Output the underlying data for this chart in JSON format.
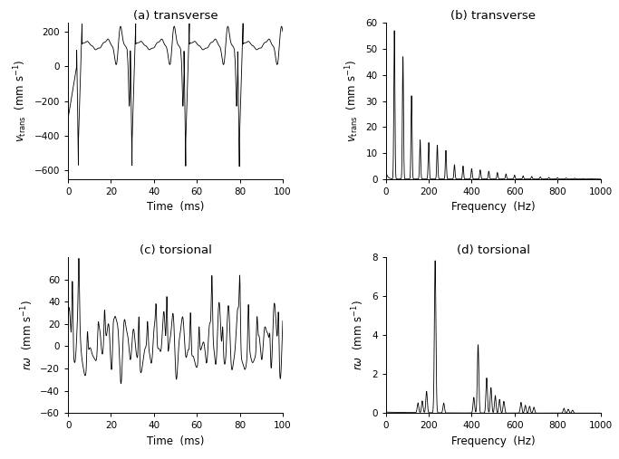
{
  "fig_width": 6.83,
  "fig_height": 5.07,
  "dpi": 100,
  "background_color": "#ffffff",
  "panels": {
    "a": {
      "title": "(a) transverse",
      "xlabel": "Time  (ms)",
      "ylabel_latex": "$v_\\mathrm{trans}$  (mm s$^{-1}$)",
      "xlim": [
        0,
        100
      ],
      "ylim": [
        -650,
        250
      ],
      "yticks": [
        -600,
        -400,
        -200,
        0,
        200
      ],
      "xticks": [
        0,
        20,
        40,
        60,
        80,
        100
      ]
    },
    "b": {
      "title": "(b) transverse",
      "xlabel": "Frequency  (Hz)",
      "ylabel_latex": "$v_\\mathrm{trans}$  (mm s$^{-1}$)",
      "xlim": [
        0,
        1000
      ],
      "ylim": [
        0,
        60
      ],
      "yticks": [
        0,
        10,
        20,
        30,
        40,
        50,
        60
      ],
      "xticks": [
        0,
        200,
        400,
        600,
        800,
        1000
      ]
    },
    "c": {
      "title": "(c) torsional",
      "xlabel": "Time  (ms)",
      "ylabel_latex": "$r\\omega$  (mm s$^{-1}$)",
      "xlim": [
        0,
        100
      ],
      "ylim": [
        -60,
        80
      ],
      "yticks": [
        -60,
        -40,
        -20,
        0,
        20,
        40,
        60
      ],
      "xticks": [
        0,
        20,
        40,
        60,
        80,
        100
      ]
    },
    "d": {
      "title": "(d) torsional",
      "xlabel": "Frequency  (Hz)",
      "ylabel_latex": "$r\\omega$  (mm s$^{-1}$)",
      "xlim": [
        0,
        1000
      ],
      "ylim": [
        0,
        8
      ],
      "yticks": [
        0,
        2,
        4,
        6,
        8
      ],
      "xticks": [
        0,
        200,
        400,
        600,
        800,
        1000
      ]
    }
  },
  "line_color": "#000000",
  "line_width": 0.6,
  "trans_harmonics": [
    [
      40,
      57
    ],
    [
      80,
      47
    ],
    [
      120,
      32
    ],
    [
      160,
      15
    ],
    [
      200,
      14
    ],
    [
      240,
      13
    ],
    [
      280,
      11
    ],
    [
      320,
      5.5
    ],
    [
      360,
      5
    ],
    [
      400,
      4
    ],
    [
      440,
      3.5
    ],
    [
      480,
      3
    ],
    [
      520,
      2.5
    ],
    [
      560,
      2
    ],
    [
      600,
      1.5
    ],
    [
      640,
      1.2
    ],
    [
      680,
      1.0
    ],
    [
      720,
      0.8
    ],
    [
      760,
      0.6
    ],
    [
      800,
      0.5
    ],
    [
      840,
      0.4
    ],
    [
      880,
      0.3
    ],
    [
      920,
      0.2
    ],
    [
      960,
      0.15
    ]
  ],
  "tors_freq_peaks": [
    [
      230,
      7.8
    ],
    [
      190,
      1.1
    ],
    [
      170,
      0.6
    ],
    [
      150,
      0.5
    ],
    [
      270,
      0.5
    ],
    [
      430,
      3.5
    ],
    [
      470,
      1.8
    ],
    [
      410,
      0.8
    ],
    [
      490,
      1.3
    ],
    [
      510,
      0.9
    ],
    [
      530,
      0.7
    ],
    [
      550,
      0.6
    ],
    [
      630,
      0.55
    ],
    [
      650,
      0.4
    ],
    [
      670,
      0.35
    ],
    [
      690,
      0.3
    ],
    [
      830,
      0.25
    ],
    [
      850,
      0.2
    ],
    [
      870,
      0.15
    ]
  ]
}
